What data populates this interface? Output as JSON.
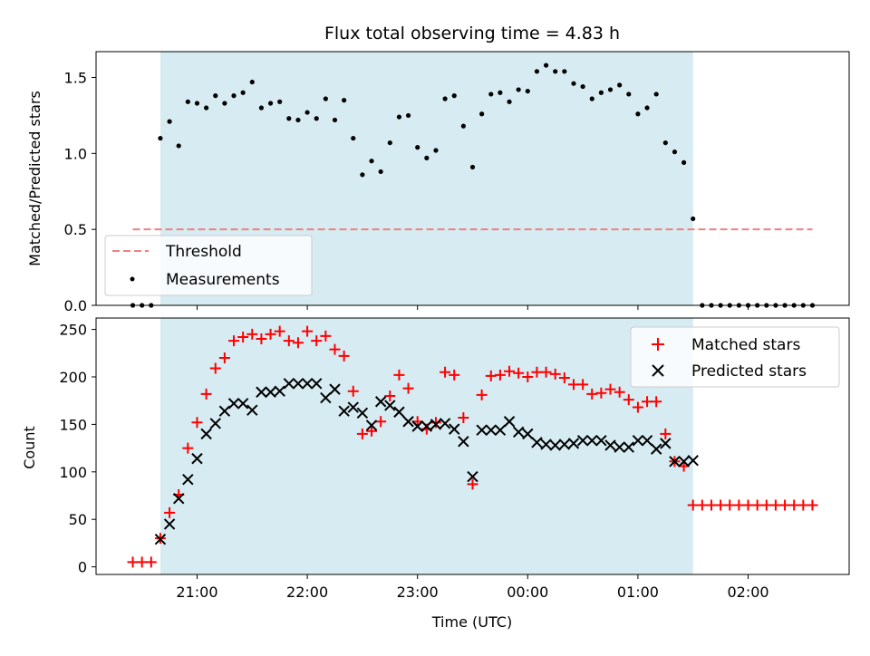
{
  "title": "Flux total observing time = 4.83 h",
  "chart_data": [
    {
      "type": "scatter",
      "panel": "top",
      "ylabel": "Matched/Predicted stars",
      "ylim": [
        0,
        1.67
      ],
      "yticks": [
        0.0,
        0.5,
        1.0,
        1.5
      ],
      "ytick_labels": [
        "0.0",
        "0.5",
        "1.0",
        "1.5"
      ],
      "threshold": {
        "name": "Threshold",
        "y": 0.5,
        "x_range": [
          "20:25",
          "02:35"
        ],
        "color": "#f08080"
      },
      "observing_window": {
        "start": "20:40",
        "end": "01:30",
        "color": "#add8e6"
      },
      "legend": {
        "placement": "lower-left",
        "entries": [
          "Threshold",
          "Measurements"
        ]
      },
      "series": [
        {
          "name": "Measurements",
          "color": "#000000",
          "points": [
            [
              "20:25",
              0
            ],
            [
              "20:30",
              0
            ],
            [
              "20:35",
              0
            ],
            [
              "20:40",
              1.1
            ],
            [
              "20:45",
              1.21
            ],
            [
              "20:50",
              1.05
            ],
            [
              "20:55",
              1.34
            ],
            [
              "21:00",
              1.33
            ],
            [
              "21:05",
              1.3
            ],
            [
              "21:10",
              1.38
            ],
            [
              "21:15",
              1.33
            ],
            [
              "21:20",
              1.38
            ],
            [
              "21:25",
              1.4
            ],
            [
              "21:30",
              1.47
            ],
            [
              "21:35",
              1.3
            ],
            [
              "21:40",
              1.33
            ],
            [
              "21:45",
              1.34
            ],
            [
              "21:50",
              1.23
            ],
            [
              "21:55",
              1.22
            ],
            [
              "22:00",
              1.27
            ],
            [
              "22:05",
              1.23
            ],
            [
              "22:10",
              1.36
            ],
            [
              "22:15",
              1.22
            ],
            [
              "22:20",
              1.35
            ],
            [
              "22:25",
              1.1
            ],
            [
              "22:30",
              0.86
            ],
            [
              "22:35",
              0.95
            ],
            [
              "22:40",
              0.88
            ],
            [
              "22:45",
              1.07
            ],
            [
              "22:50",
              1.24
            ],
            [
              "22:55",
              1.25
            ],
            [
              "23:00",
              1.04
            ],
            [
              "23:05",
              0.97
            ],
            [
              "23:10",
              1.02
            ],
            [
              "23:15",
              1.36
            ],
            [
              "23:20",
              1.38
            ],
            [
              "23:25",
              1.18
            ],
            [
              "23:30",
              0.91
            ],
            [
              "23:35",
              1.26
            ],
            [
              "23:40",
              1.39
            ],
            [
              "23:45",
              1.4
            ],
            [
              "23:50",
              1.34
            ],
            [
              "23:55",
              1.42
            ],
            [
              "00:00",
              1.41
            ],
            [
              "00:05",
              1.54
            ],
            [
              "00:10",
              1.58
            ],
            [
              "00:15",
              1.54
            ],
            [
              "00:20",
              1.54
            ],
            [
              "00:25",
              1.46
            ],
            [
              "00:30",
              1.44
            ],
            [
              "00:35",
              1.36
            ],
            [
              "00:40",
              1.4
            ],
            [
              "00:45",
              1.42
            ],
            [
              "00:50",
              1.45
            ],
            [
              "00:55",
              1.39
            ],
            [
              "01:00",
              1.26
            ],
            [
              "01:05",
              1.3
            ],
            [
              "01:10",
              1.39
            ],
            [
              "01:15",
              1.07
            ],
            [
              "01:20",
              1.01
            ],
            [
              "01:25",
              0.94
            ],
            [
              "01:30",
              0.57
            ],
            [
              "01:35",
              0
            ],
            [
              "01:40",
              0
            ],
            [
              "01:45",
              0
            ],
            [
              "01:50",
              0
            ],
            [
              "01:55",
              0
            ],
            [
              "02:00",
              0
            ],
            [
              "02:05",
              0
            ],
            [
              "02:10",
              0
            ],
            [
              "02:15",
              0
            ],
            [
              "02:20",
              0
            ],
            [
              "02:25",
              0
            ],
            [
              "02:30",
              0
            ],
            [
              "02:35",
              0
            ]
          ]
        }
      ]
    },
    {
      "type": "scatter",
      "panel": "bottom",
      "xlabel": "Time (UTC)",
      "ylabel": "Count",
      "ylim": [
        -8,
        262
      ],
      "yticks": [
        0,
        50,
        100,
        150,
        200,
        250
      ],
      "ytick_labels": [
        "0",
        "50",
        "100",
        "150",
        "200",
        "250"
      ],
      "xlim": [
        "20:05",
        "02:55"
      ],
      "xticks": [
        "21:00",
        "22:00",
        "23:00",
        "00:00",
        "01:00",
        "02:00"
      ],
      "xtick_labels": [
        "21:00",
        "22:00",
        "23:00",
        "00:00",
        "01:00",
        "02:00"
      ],
      "observing_window": {
        "start": "20:40",
        "end": "01:30",
        "color": "#add8e6"
      },
      "legend": {
        "placement": "top-right",
        "entries": [
          "Matched stars",
          "Predicted stars"
        ]
      },
      "series": [
        {
          "name": "Matched stars",
          "marker": "plus",
          "color": "#ff0000",
          "points": [
            [
              "20:25",
              5
            ],
            [
              "20:30",
              5
            ],
            [
              "20:35",
              5
            ],
            [
              "20:40",
              30
            ],
            [
              "20:45",
              57
            ],
            [
              "20:50",
              76
            ],
            [
              "20:55",
              125
            ],
            [
              "21:00",
              152
            ],
            [
              "21:05",
              182
            ],
            [
              "21:10",
              209
            ],
            [
              "21:15",
              220
            ],
            [
              "21:20",
              238
            ],
            [
              "21:25",
              242
            ],
            [
              "21:30",
              245
            ],
            [
              "21:35",
              240
            ],
            [
              "21:40",
              245
            ],
            [
              "21:45",
              248
            ],
            [
              "21:50",
              238
            ],
            [
              "21:55",
              236
            ],
            [
              "22:00",
              248
            ],
            [
              "22:05",
              238
            ],
            [
              "22:10",
              243
            ],
            [
              "22:15",
              229
            ],
            [
              "22:20",
              222
            ],
            [
              "22:25",
              185
            ],
            [
              "22:30",
              140
            ],
            [
              "22:35",
              143
            ],
            [
              "22:40",
              153
            ],
            [
              "22:45",
              180
            ],
            [
              "22:50",
              202
            ],
            [
              "22:55",
              188
            ],
            [
              "23:00",
              153
            ],
            [
              "23:05",
              145
            ],
            [
              "23:10",
              152
            ],
            [
              "23:15",
              205
            ],
            [
              "23:20",
              202
            ],
            [
              "23:25",
              157
            ],
            [
              "23:30",
              87
            ],
            [
              "23:35",
              181
            ],
            [
              "23:40",
              201
            ],
            [
              "23:45",
              202
            ],
            [
              "23:50",
              206
            ],
            [
              "23:55",
              204
            ],
            [
              "00:00",
              200
            ],
            [
              "00:05",
              205
            ],
            [
              "00:10",
              205
            ],
            [
              "00:15",
              203
            ],
            [
              "00:20",
              199
            ],
            [
              "00:25",
              192
            ],
            [
              "00:30",
              192
            ],
            [
              "00:35",
              182
            ],
            [
              "00:40",
              183
            ],
            [
              "00:45",
              187
            ],
            [
              "00:50",
              184
            ],
            [
              "00:55",
              176
            ],
            [
              "01:00",
              168
            ],
            [
              "01:05",
              174
            ],
            [
              "01:10",
              174
            ],
            [
              "01:15",
              140
            ],
            [
              "01:20",
              111
            ],
            [
              "01:25",
              106
            ],
            [
              "01:30",
              65
            ],
            [
              "01:35",
              65
            ],
            [
              "01:40",
              65
            ],
            [
              "01:45",
              65
            ],
            [
              "01:50",
              65
            ],
            [
              "01:55",
              65
            ],
            [
              "02:00",
              65
            ],
            [
              "02:05",
              65
            ],
            [
              "02:10",
              65
            ],
            [
              "02:15",
              65
            ],
            [
              "02:20",
              65
            ],
            [
              "02:25",
              65
            ],
            [
              "02:30",
              65
            ],
            [
              "02:35",
              65
            ]
          ]
        },
        {
          "name": "Predicted stars",
          "marker": "x",
          "color": "#000000",
          "points": [
            [
              "20:40",
              29
            ],
            [
              "20:45",
              45
            ],
            [
              "20:50",
              72
            ],
            [
              "20:55",
              92
            ],
            [
              "21:00",
              114
            ],
            [
              "21:05",
              140
            ],
            [
              "21:10",
              151
            ],
            [
              "21:15",
              164
            ],
            [
              "21:20",
              172
            ],
            [
              "21:25",
              172
            ],
            [
              "21:30",
              165
            ],
            [
              "21:35",
              184
            ],
            [
              "21:40",
              184
            ],
            [
              "21:45",
              185
            ],
            [
              "21:50",
              193
            ],
            [
              "21:55",
              193
            ],
            [
              "22:00",
              193
            ],
            [
              "22:05",
              193
            ],
            [
              "22:10",
              178
            ],
            [
              "22:15",
              187
            ],
            [
              "22:20",
              164
            ],
            [
              "22:25",
              168
            ],
            [
              "22:30",
              162
            ],
            [
              "22:35",
              149
            ],
            [
              "22:40",
              174
            ],
            [
              "22:45",
              170
            ],
            [
              "22:50",
              163
            ],
            [
              "22:55",
              153
            ],
            [
              "23:00",
              148
            ],
            [
              "23:05",
              148
            ],
            [
              "23:10",
              150
            ],
            [
              "23:15",
              151
            ],
            [
              "23:20",
              145
            ],
            [
              "23:25",
              132
            ],
            [
              "23:30",
              95
            ],
            [
              "23:35",
              144
            ],
            [
              "23:40",
              144
            ],
            [
              "23:45",
              144
            ],
            [
              "23:50",
              153
            ],
            [
              "23:55",
              142
            ],
            [
              "00:00",
              140
            ],
            [
              "00:05",
              131
            ],
            [
              "00:10",
              129
            ],
            [
              "00:15",
              128
            ],
            [
              "00:20",
              129
            ],
            [
              "00:25",
              130
            ],
            [
              "00:30",
              133
            ],
            [
              "00:35",
              133
            ],
            [
              "00:40",
              133
            ],
            [
              "00:45",
              128
            ],
            [
              "00:50",
              126
            ],
            [
              "00:55",
              126
            ],
            [
              "01:00",
              133
            ],
            [
              "01:05",
              133
            ],
            [
              "01:10",
              124
            ],
            [
              "01:15",
              130
            ],
            [
              "01:20",
              111
            ],
            [
              "01:25",
              111
            ],
            [
              "01:30",
              112
            ]
          ]
        }
      ]
    }
  ]
}
